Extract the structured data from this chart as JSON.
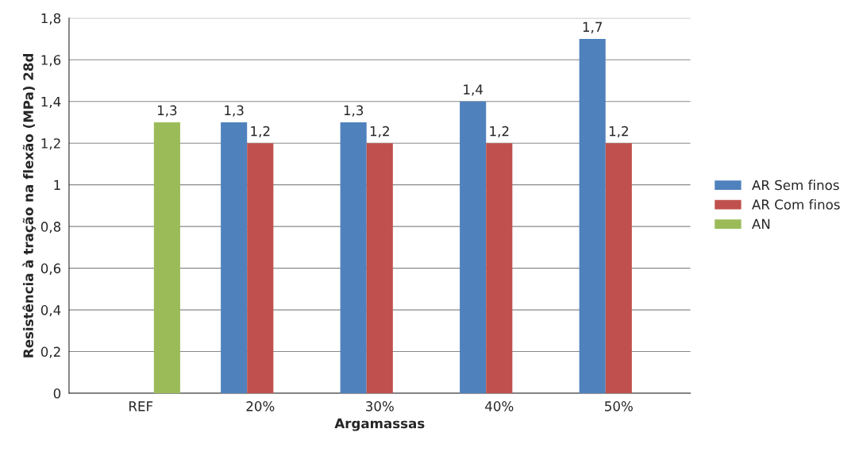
{
  "chart_data": {
    "type": "bar",
    "xlabel": "Argamassas",
    "ylabel": "Resistência à tração na flexão (MPa) 28d",
    "categories": [
      "REF",
      "20%",
      "30%",
      "40%",
      "50%"
    ],
    "series": [
      {
        "name": "AR Sem finos",
        "color": "#4f81bd",
        "values": [
          null,
          1.3,
          1.3,
          1.4,
          1.7
        ],
        "value_labels": [
          null,
          "1,3",
          "1,3",
          "1,4",
          "1,7"
        ]
      },
      {
        "name": "AR Com finos",
        "color": "#c0504d",
        "values": [
          null,
          1.2,
          1.2,
          1.2,
          1.2
        ],
        "value_labels": [
          null,
          "1,2",
          "1,2",
          "1,2",
          "1,2"
        ]
      },
      {
        "name": "AN",
        "color": "#9bbb59",
        "values": [
          1.3,
          null,
          null,
          null,
          null
        ],
        "value_labels": [
          "1,3",
          null,
          null,
          null,
          null
        ]
      }
    ],
    "ylim": [
      0,
      1.8
    ],
    "yticks": [
      0,
      {
        "value": 0.2,
        "label": "0,2"
      },
      {
        "value": 0.4,
        "label": "0,4"
      },
      {
        "value": 0.6,
        "label": "0,6"
      },
      {
        "value": 0.8,
        "label": "0,8"
      },
      1,
      {
        "value": 1.2,
        "label": "1,2"
      },
      {
        "value": 1.4,
        "label": "1,4"
      },
      {
        "value": 1.6,
        "label": "1,6"
      },
      {
        "value": 1.8,
        "label": "1,8"
      }
    ],
    "grid": "y",
    "legend": "right"
  }
}
